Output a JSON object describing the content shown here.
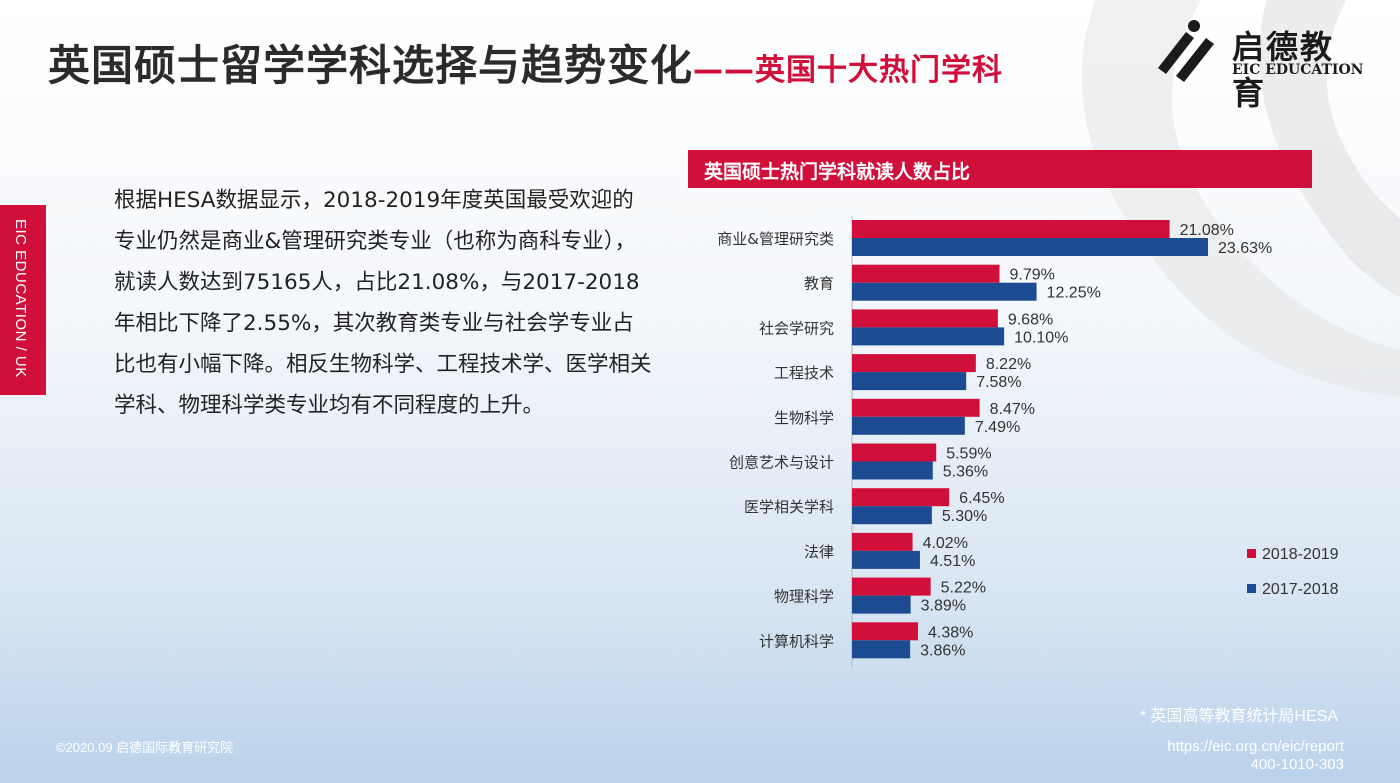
{
  "title": {
    "main": "英国硕士留学学科选择与趋势变化",
    "sub": "——英国十大热门学科"
  },
  "logo": {
    "name_cn": "启德教育",
    "name_en": "EIC EDUCATION"
  },
  "side_tab": "EIC EDUCATION / UK",
  "body_text": "根据HESA数据显示，2018-2019年度英国最受欢迎的专业仍然是商业&管理研究类专业（也称为商科专业），就读人数达到75165人，占比21.08%，与2017-2018年相比下降了2.55%，其次教育类专业与社会学专业占比也有小幅下降。相反生物科学、工程技术学、医学相关学科、物理科学类专业均有不同程度的上升。",
  "chart_header": "英国硕士热门学科就读人数占比",
  "footnote": "* 英国高等教育统计局HESA",
  "copyright": "©2020.09 启德国际教育研究院",
  "url": "https://eic.org.cn/eic/report",
  "phone": "400-1010-303",
  "colors": {
    "accent_red": "#d0103a",
    "series_blue": "#1c4b91"
  },
  "chart_data": {
    "type": "bar",
    "orientation": "horizontal",
    "title": "英国硕士热门学科就读人数占比",
    "categories": [
      "商业&管理研究类",
      "教育",
      "社会学研究",
      "工程技术",
      "生物科学",
      "创意艺术与设计",
      "医学相关学科",
      "法律",
      "物理科学",
      "计算机科学"
    ],
    "series": [
      {
        "name": "2018-2019",
        "color": "#d0103a",
        "values": [
          21.08,
          9.79,
          9.68,
          8.22,
          8.47,
          5.59,
          6.45,
          4.02,
          5.22,
          4.38
        ]
      },
      {
        "name": "2017-2018",
        "color": "#1c4b91",
        "values": [
          23.63,
          12.25,
          10.1,
          7.58,
          7.49,
          5.36,
          5.3,
          4.51,
          3.89,
          3.86
        ]
      }
    ],
    "value_suffix": "%",
    "legend_position": "right",
    "grid": false
  }
}
